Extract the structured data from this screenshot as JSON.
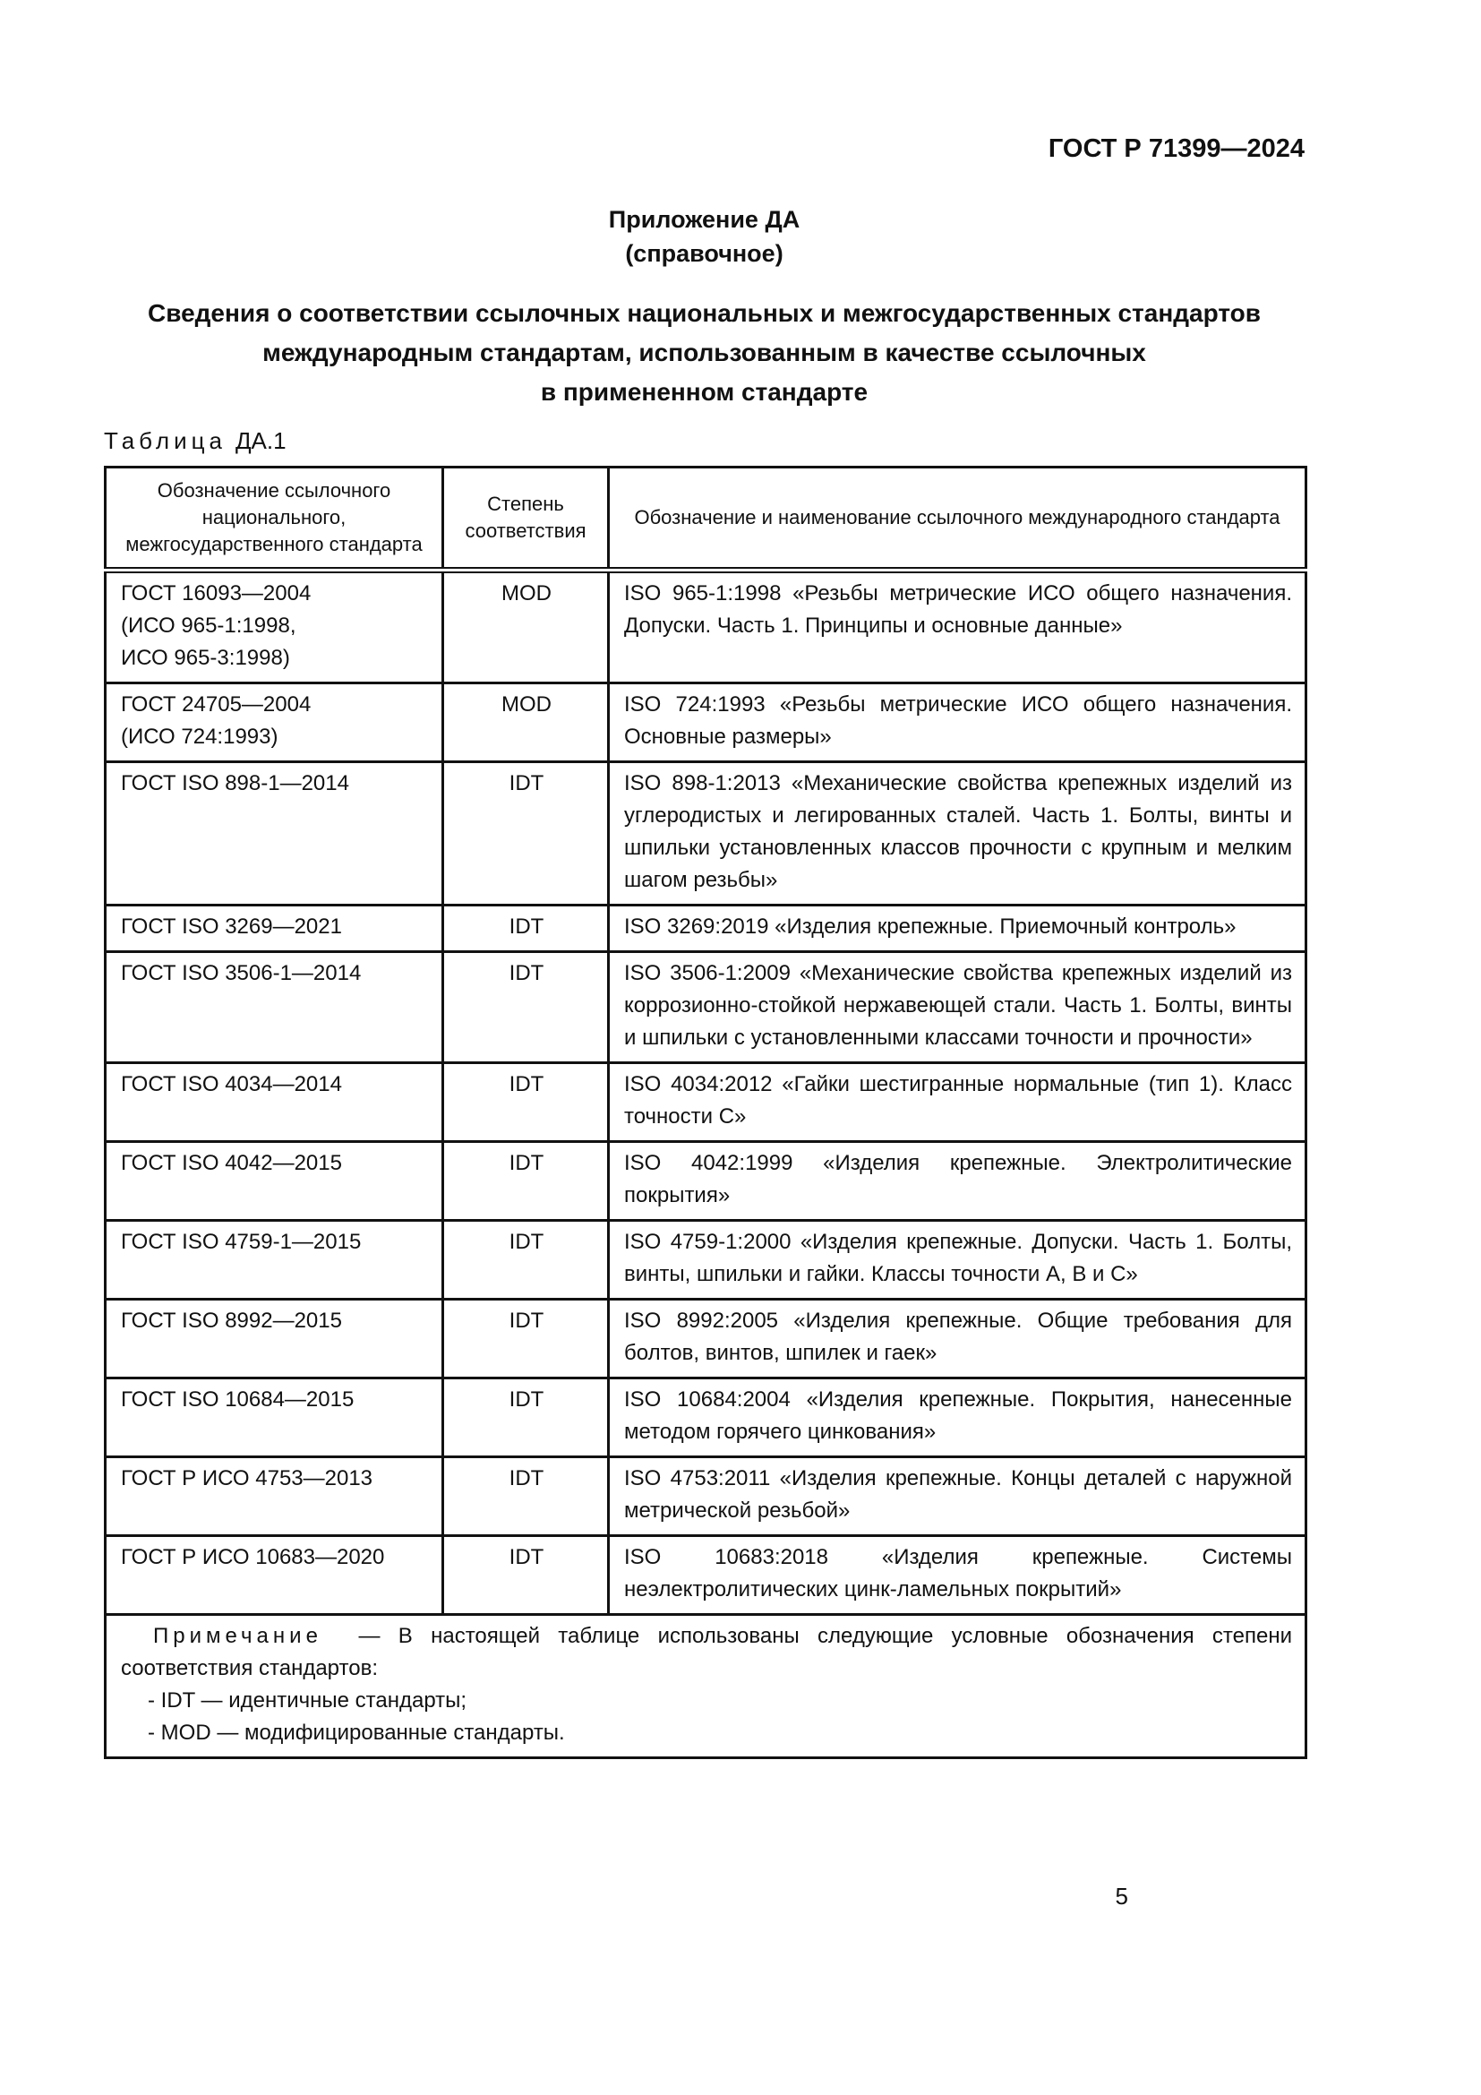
{
  "colors": {
    "background": "#ffffff",
    "text": "#111111",
    "border": "#111111"
  },
  "page": {
    "doc_number": "ГОСТ Р 71399—2024",
    "appendix_title": "Приложение ДА",
    "appendix_subtitle": "(справочное)",
    "title_lines": [
      "Сведения о соответствии ссылочных национальных и межгосударственных стандартов",
      "международным стандартам, использованным в качестве ссылочных",
      "в примененном стандарте"
    ],
    "page_number": "5"
  },
  "table": {
    "label_word": "Таблица",
    "label_number": "ДА.1",
    "columns": [
      "Обозначение ссылочного национального, межгосударственного стандарта",
      "Степень соответствия",
      "Обозначение и наименование ссылочного международного стандарта"
    ],
    "rows": [
      {
        "national": "ГОСТ 16093—2004\n(ИСО 965-1:1998,\nИСО 965-3:1998)",
        "degree": "MOD",
        "international": "ISO 965-1:1998 «Резьбы метрические ИСО общего назначения. Допуски. Часть 1. Принципы и основные данные»"
      },
      {
        "national": "ГОСТ 24705—2004\n(ИСО 724:1993)",
        "degree": "MOD",
        "international": "ISO 724:1993 «Резьбы метрические ИСО общего назначения. Основные размеры»"
      },
      {
        "national": "ГОСТ ISO 898-1—2014",
        "degree": "IDT",
        "international": "ISO 898-1:2013 «Механические свойства крепежных изделий из углеродистых и легированных сталей. Часть 1. Болты, винты и шпильки установленных классов прочности с крупным и мелким шагом резьбы»"
      },
      {
        "national": "ГОСТ ISO 3269—2021",
        "degree": "IDT",
        "international": "ISO 3269:2019 «Изделия крепежные. Приемочный контроль»"
      },
      {
        "national": "ГОСТ ISO 3506-1—2014",
        "degree": "IDT",
        "international": "ISO 3506-1:2009 «Механические свойства крепежных изделий из коррозионно-стойкой нержавеющей стали. Часть 1. Болты, винты и шпильки с установленными классами точности и прочности»"
      },
      {
        "national": "ГОСТ ISO 4034—2014",
        "degree": "IDT",
        "international": "ISO 4034:2012 «Гайки шестигранные нормальные (тип 1). Класс точности С»"
      },
      {
        "national": "ГОСТ ISO 4042—2015",
        "degree": "IDT",
        "international": "ISO 4042:1999 «Изделия крепежные. Электролитические покрытия»"
      },
      {
        "national": "ГОСТ ISO 4759-1—2015",
        "degree": "IDT",
        "international": "ISO 4759-1:2000 «Изделия крепежные. Допуски. Часть 1. Болты, винты, шпильки и гайки. Классы точности А, В и С»"
      },
      {
        "national": "ГОСТ ISO 8992—2015",
        "degree": "IDT",
        "international": "ISO 8992:2005 «Изделия крепежные. Общие требования для болтов, винтов, шпилек и гаек»"
      },
      {
        "national": "ГОСТ ISO 10684—2015",
        "degree": "IDT",
        "international": "ISO 10684:2004 «Изделия крепежные. Покрытия, нанесенные методом горячего цинкования»"
      },
      {
        "national": "ГОСТ Р ИСО 4753—2013",
        "degree": "IDT",
        "international": "ISO 4753:2011 «Изделия крепежные. Концы деталей с наружной метрической резьбой»"
      },
      {
        "national": "ГОСТ Р ИСО 10683—2020",
        "degree": "IDT",
        "international": "ISO 10683:2018 «Изделия крепежные. Системы неэлектролитических цинк-ламельных покрытий»"
      }
    ],
    "note": {
      "label": "Примечание",
      "text": "— В настоящей таблице использованы следующие условные обозначения степени соответствия стандартов:",
      "items": [
        "- IDT — идентичные стандарты;",
        "- MOD — модифицированные стандарты."
      ]
    }
  }
}
